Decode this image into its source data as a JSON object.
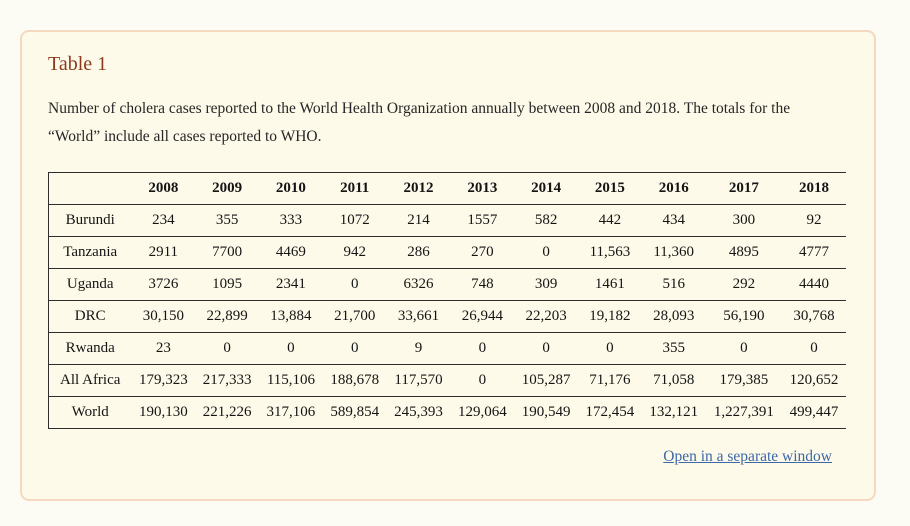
{
  "colors": {
    "page_bg": "#fcfcf5",
    "panel_bg": "#fefae9",
    "panel_border": "#f4d8c0",
    "title": "#8b3a1e",
    "text": "#262626",
    "rule": "#2e2e2e",
    "link": "#3d68a8"
  },
  "panel": {
    "title": "Table 1",
    "caption": "Number of cholera cases reported to the World Health Organization annually between 2008 and 2018. The totals for the “World” include all cases reported to WHO.",
    "link_label": "Open in a separate window"
  },
  "chart_data": {
    "type": "table",
    "columns": [
      "",
      "2008",
      "2009",
      "2010",
      "2011",
      "2012",
      "2013",
      "2014",
      "2015",
      "2016",
      "2017",
      "2018"
    ],
    "rows": [
      {
        "label": "Burundi",
        "values": [
          "234",
          "355",
          "333",
          "1072",
          "214",
          "1557",
          "582",
          "442",
          "434",
          "300",
          "92"
        ]
      },
      {
        "label": "Tanzania",
        "values": [
          "2911",
          "7700",
          "4469",
          "942",
          "286",
          "270",
          "0",
          "11,563",
          "11,360",
          "4895",
          "4777"
        ]
      },
      {
        "label": "Uganda",
        "values": [
          "3726",
          "1095",
          "2341",
          "0",
          "6326",
          "748",
          "309",
          "1461",
          "516",
          "292",
          "4440"
        ]
      },
      {
        "label": "DRC",
        "values": [
          "30,150",
          "22,899",
          "13,884",
          "21,700",
          "33,661",
          "26,944",
          "22,203",
          "19,182",
          "28,093",
          "56,190",
          "30,768"
        ]
      },
      {
        "label": "Rwanda",
        "values": [
          "23",
          "0",
          "0",
          "0",
          "9",
          "0",
          "0",
          "0",
          "355",
          "0",
          "0"
        ]
      },
      {
        "label": "All Africa",
        "values": [
          "179,323",
          "217,333",
          "115,106",
          "188,678",
          "117,570",
          "0",
          "105,287",
          "71,176",
          "71,058",
          "179,385",
          "120,652"
        ]
      },
      {
        "label": "World",
        "values": [
          "190,130",
          "221,226",
          "317,106",
          "589,854",
          "245,393",
          "129,064",
          "190,549",
          "172,454",
          "132,121",
          "1,227,391",
          "499,447"
        ]
      }
    ]
  }
}
